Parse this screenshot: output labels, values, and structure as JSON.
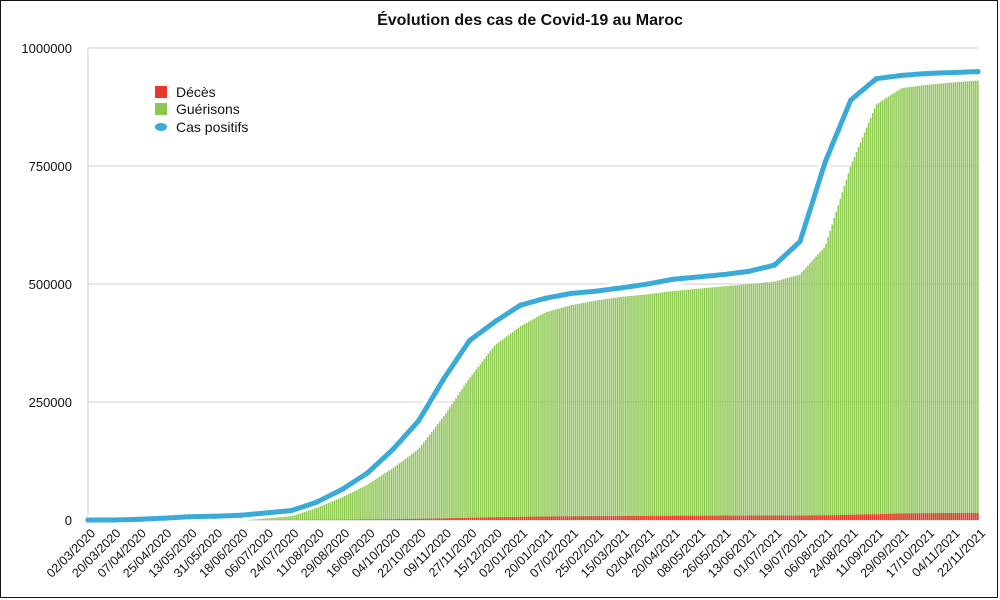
{
  "chart_data": {
    "type": "bar",
    "title": "Évolution des cas de Covid-19 au Maroc",
    "xlabel": "",
    "ylabel": "",
    "ylim": [
      0,
      1000000
    ],
    "y_ticks": [
      {
        "value": 0,
        "label": "0"
      },
      {
        "value": 250000,
        "label": "250000"
      },
      {
        "value": 500000,
        "label": "500000"
      },
      {
        "value": 750000,
        "label": "750000"
      },
      {
        "value": 1000000,
        "label": "1000000"
      }
    ],
    "x_tick_labels": [
      "02/03/2020",
      "20/03/2020",
      "07/04/2020",
      "25/04/2020",
      "13/05/2020",
      "31/05/2020",
      "18/06/2020",
      "06/07/2020",
      "24/07/2020",
      "11/08/2020",
      "29/08/2020",
      "16/09/2020",
      "04/10/2020",
      "22/10/2020",
      "09/11/2020",
      "27/11/2020",
      "15/12/2020",
      "02/01/2021",
      "20/01/2021",
      "07/02/2021",
      "25/02/2021",
      "15/03/2021",
      "02/04/2021",
      "20/04/2021",
      "08/05/2021",
      "26/05/2021",
      "13/06/2021",
      "01/07/2021",
      "19/07/2021",
      "06/08/2021",
      "24/08/2021",
      "11/09/2021",
      "29/09/2021",
      "17/10/2021",
      "04/11/2021",
      "22/11/2021"
    ],
    "grid": true,
    "legend_position": "top-left",
    "series": [
      {
        "name": "Décès",
        "kind": "bar",
        "color": "#e8372c",
        "values": [
          0,
          0,
          0,
          0,
          0,
          0,
          0,
          100,
          200,
          300,
          600,
          1100,
          1700,
          2600,
          3500,
          4600,
          5700,
          6600,
          7400,
          7900,
          8300,
          8500,
          8700,
          8800,
          9100,
          9200,
          9300,
          9300,
          9400,
          9800,
          11000,
          12400,
          13800,
          14500,
          14700,
          14800
        ]
      },
      {
        "name": "Guérisons",
        "kind": "bar",
        "color": "#8cc74f",
        "values": [
          0,
          0,
          0,
          300,
          2000,
          4500,
          7000,
          10000,
          14000,
          26000,
          48000,
          75000,
          110000,
          150000,
          220000,
          300000,
          370000,
          410000,
          440000,
          455000,
          465000,
          473000,
          478000,
          485000,
          490000,
          495000,
          500000,
          505000,
          520000,
          580000,
          750000,
          880000,
          915000,
          922000,
          927000,
          931000
        ]
      },
      {
        "name": "Cas positifs",
        "kind": "line",
        "color": "#3aaad8",
        "values": [
          0,
          0,
          1500,
          4000,
          7000,
          8000,
          10000,
          15000,
          20000,
          38000,
          65000,
          100000,
          150000,
          210000,
          300000,
          380000,
          420000,
          455000,
          470000,
          480000,
          485000,
          492000,
          500000,
          510000,
          515000,
          520000,
          527000,
          540000,
          590000,
          760000,
          890000,
          935000,
          942000,
          946000,
          948000,
          950000
        ]
      }
    ]
  }
}
